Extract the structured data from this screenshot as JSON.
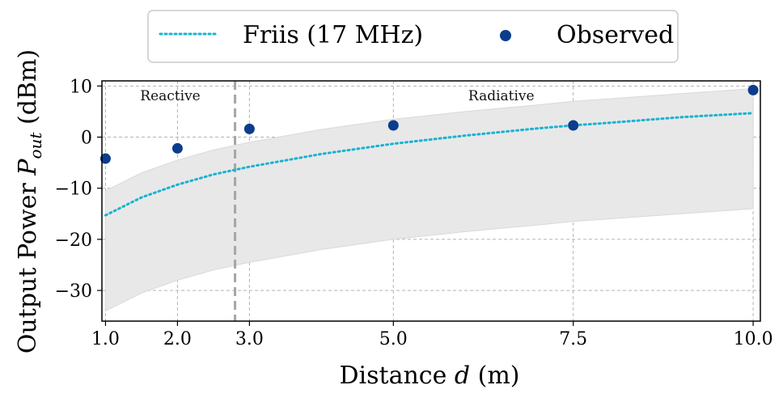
{
  "chart_data": {
    "type": "line",
    "xlabel": "Distance d (m)",
    "ylabel": "Output Power P_out (dBm)",
    "xlim": [
      0.95,
      10.1
    ],
    "ylim": [
      -36,
      11
    ],
    "x_ticks": [
      1.0,
      2.0,
      3.0,
      5.0,
      7.5,
      10.0
    ],
    "x_tick_labels": [
      "1.0",
      "2.0",
      "3.0",
      "5.0",
      "7.5",
      "10.0"
    ],
    "y_ticks": [
      10,
      0,
      -10,
      -20,
      -30
    ],
    "y_tick_labels": [
      "10",
      "0",
      "−10",
      "−20",
      "−30"
    ],
    "grid": true,
    "legend_position": "top-center",
    "series": [
      {
        "name": "Friis (17 MHz)",
        "style": "dotted-line",
        "color": "#17b3d0",
        "x": [
          1.0,
          1.5,
          2.0,
          2.5,
          3.0,
          4.0,
          5.0,
          6.0,
          7.0,
          7.5,
          8.0,
          9.0,
          10.0
        ],
        "y": [
          -15.3,
          -11.8,
          -9.3,
          -7.3,
          -5.8,
          -3.3,
          -1.3,
          0.3,
          1.7,
          2.3,
          2.8,
          3.9,
          4.7
        ]
      },
      {
        "name": "Observed",
        "style": "markers",
        "color": "#0b3d8c",
        "x": [
          1.0,
          2.0,
          3.0,
          5.0,
          7.5,
          10.0
        ],
        "y": [
          -4.2,
          -2.2,
          1.6,
          2.3,
          2.3,
          9.2
        ]
      }
    ],
    "band": {
      "color": "#e8e8e8",
      "x": [
        1.0,
        1.5,
        2.0,
        2.5,
        3.0,
        4.0,
        5.0,
        6.0,
        7.0,
        7.5,
        8.0,
        9.0,
        10.0
      ],
      "lower": [
        -34,
        -30.5,
        -28,
        -26,
        -24.5,
        -22,
        -20,
        -18.5,
        -17.2,
        -16.5,
        -16,
        -15,
        -14
      ],
      "upper": [
        -10.5,
        -7,
        -4.5,
        -2.5,
        -1,
        1.5,
        3.5,
        5,
        6.3,
        7,
        7.5,
        8.5,
        9.5
      ]
    },
    "vline": {
      "x": 2.8,
      "color": "#a6a6a6",
      "style": "dashed"
    },
    "annotations": [
      {
        "text": "Reactive",
        "x": 1.9,
        "y": 8.0
      },
      {
        "text": "Radiative",
        "x": 6.5,
        "y": 8.0
      }
    ]
  }
}
